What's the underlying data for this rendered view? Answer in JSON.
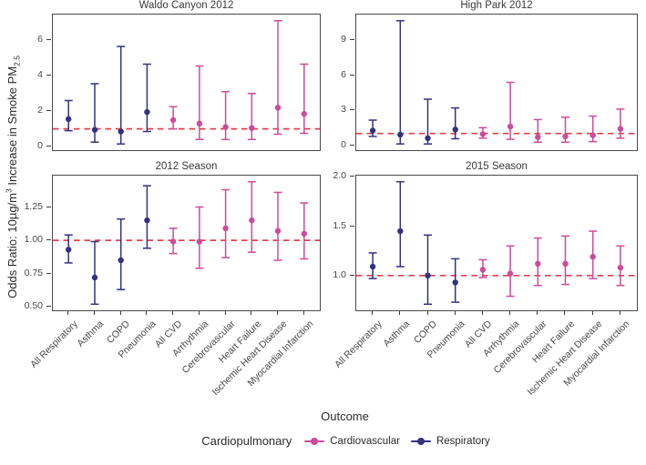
{
  "figure": {
    "ylabel": {
      "p1": "Odds Ratio: 10µg/m",
      "sup": "3",
      "p2": " Increase in Smoke PM",
      "sub": "2.5"
    },
    "xlabel": "Outcome",
    "legend": {
      "title": "Cardiopulmonary",
      "entries": [
        {
          "label": "Cardiovascular",
          "group": "Cardiovascular"
        },
        {
          "label": "Respiratory",
          "group": "Respiratory"
        }
      ]
    }
  },
  "chart_data": {
    "type": "scatter",
    "subtype": "point-with-errorbar-forest-plot",
    "grid": false,
    "legend_position": "bottom",
    "ref_line": 1.0,
    "ref_color": "#e73e49",
    "colors": {
      "Cardiovascular": "#cd4b9b",
      "Respiratory": "#32327f"
    },
    "categories": [
      "All Respiratory",
      "Asthma",
      "COPD",
      "Pneumonia",
      "All CVD",
      "Arrhythmia",
      "Cerebrovascular",
      "Heart Failure",
      "Ischemic Heart Disease",
      "Myocardial Infarction"
    ],
    "group_of_category": [
      "Respiratory",
      "Respiratory",
      "Respiratory",
      "Respiratory",
      "Cardiovascular",
      "Cardiovascular",
      "Cardiovascular",
      "Cardiovascular",
      "Cardiovascular",
      "Cardiovascular"
    ],
    "panels": [
      {
        "title": "Waldo Canyon 2012",
        "ylim": [
          -0.2,
          7.45
        ],
        "yticks": [
          0,
          2,
          4,
          6
        ],
        "ytick_labels": [
          "0",
          "2",
          "4",
          "6"
        ],
        "estimates": [
          1.55,
          0.95,
          0.85,
          1.95,
          1.5,
          1.3,
          1.1,
          1.05,
          2.2,
          1.85
        ],
        "lower": [
          0.9,
          0.25,
          0.15,
          0.85,
          1.0,
          0.4,
          0.4,
          0.4,
          0.7,
          0.75
        ],
        "upper": [
          2.6,
          3.55,
          5.65,
          4.65,
          2.25,
          4.55,
          3.1,
          3.0,
          7.1,
          4.65
        ]
      },
      {
        "title": "High Park 2012",
        "ylim": [
          -0.43,
          11.23
        ],
        "yticks": [
          0,
          3,
          6,
          9
        ],
        "ytick_labels": [
          "0",
          "3",
          "6",
          "9"
        ],
        "estimates": [
          1.25,
          0.9,
          0.6,
          1.35,
          0.95,
          1.6,
          0.7,
          0.75,
          0.85,
          1.4
        ],
        "lower": [
          0.75,
          0.1,
          0.1,
          0.55,
          0.6,
          0.5,
          0.25,
          0.25,
          0.3,
          0.6
        ],
        "upper": [
          2.15,
          10.7,
          3.95,
          3.2,
          1.5,
          5.4,
          2.2,
          2.4,
          2.5,
          3.1
        ]
      },
      {
        "title": "2012 Season",
        "ylim": [
          0.474,
          1.486
        ],
        "yticks": [
          0.5,
          0.75,
          1.0,
          1.25
        ],
        "ytick_labels": [
          "0.50",
          "0.75",
          "1.00",
          "1.25"
        ],
        "estimates": [
          0.93,
          0.72,
          0.85,
          1.15,
          0.99,
          0.99,
          1.09,
          1.15,
          1.07,
          1.05
        ],
        "lower": [
          0.83,
          0.52,
          0.63,
          0.94,
          0.9,
          0.79,
          0.87,
          0.91,
          0.85,
          0.86
        ],
        "upper": [
          1.04,
          0.99,
          1.16,
          1.41,
          1.09,
          1.25,
          1.38,
          1.44,
          1.36,
          1.28
        ]
      },
      {
        "title": "2015 Season",
        "ylim": [
          0.648,
          2.012
        ],
        "yticks": [
          1.0,
          1.5,
          2.0
        ],
        "ytick_labels": [
          "1.0",
          "1.5",
          "2.0"
        ],
        "estimates": [
          1.09,
          1.45,
          1.0,
          0.93,
          1.06,
          1.02,
          1.12,
          1.12,
          1.19,
          1.08
        ],
        "lower": [
          0.97,
          1.09,
          0.71,
          0.73,
          0.98,
          0.79,
          0.9,
          0.91,
          0.97,
          0.9
        ],
        "upper": [
          1.23,
          1.95,
          1.41,
          1.17,
          1.16,
          1.3,
          1.38,
          1.4,
          1.45,
          1.3
        ]
      }
    ]
  }
}
